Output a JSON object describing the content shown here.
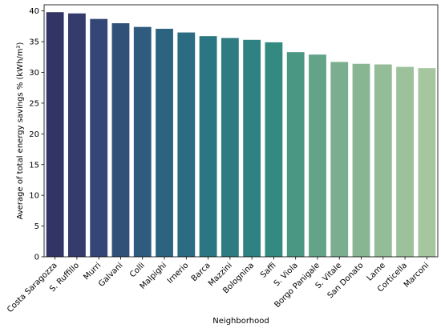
{
  "chart_data": {
    "type": "bar",
    "title": "",
    "xlabel": "Neighborhood",
    "ylabel": "Average of total energy savings % (kWh/m²)",
    "ylim": [
      0,
      41
    ],
    "yticks": [
      0,
      5,
      10,
      15,
      20,
      25,
      30,
      35,
      40
    ],
    "grid": false,
    "legend": "none",
    "categories": [
      "Costa Saragozza",
      "S. Ruffillo",
      "Murri",
      "Galvani",
      "Colli",
      "Malpighi",
      "Irnerio",
      "Barca",
      "Mazzini",
      "Bolognina",
      "Saffi",
      "S. Viola",
      "Borgo Panigale",
      "S. Vitale",
      "San Donato",
      "Lame",
      "Corticella",
      "Marconi"
    ],
    "values": [
      39.8,
      39.6,
      38.7,
      38.0,
      37.4,
      37.1,
      36.5,
      35.9,
      35.6,
      35.3,
      34.9,
      33.3,
      32.9,
      31.7,
      31.4,
      31.3,
      30.9,
      30.7
    ],
    "colors": [
      "#323466",
      "#343b6d",
      "#344675",
      "#31517b",
      "#2e5b7e",
      "#2c6480",
      "#2b6c82",
      "#2c7582",
      "#2e7c82",
      "#308282",
      "#338a81",
      "#4a9783",
      "#63a388",
      "#7aae8e",
      "#88b693",
      "#93bc97",
      "#9dc19b",
      "#a5c69f"
    ]
  }
}
